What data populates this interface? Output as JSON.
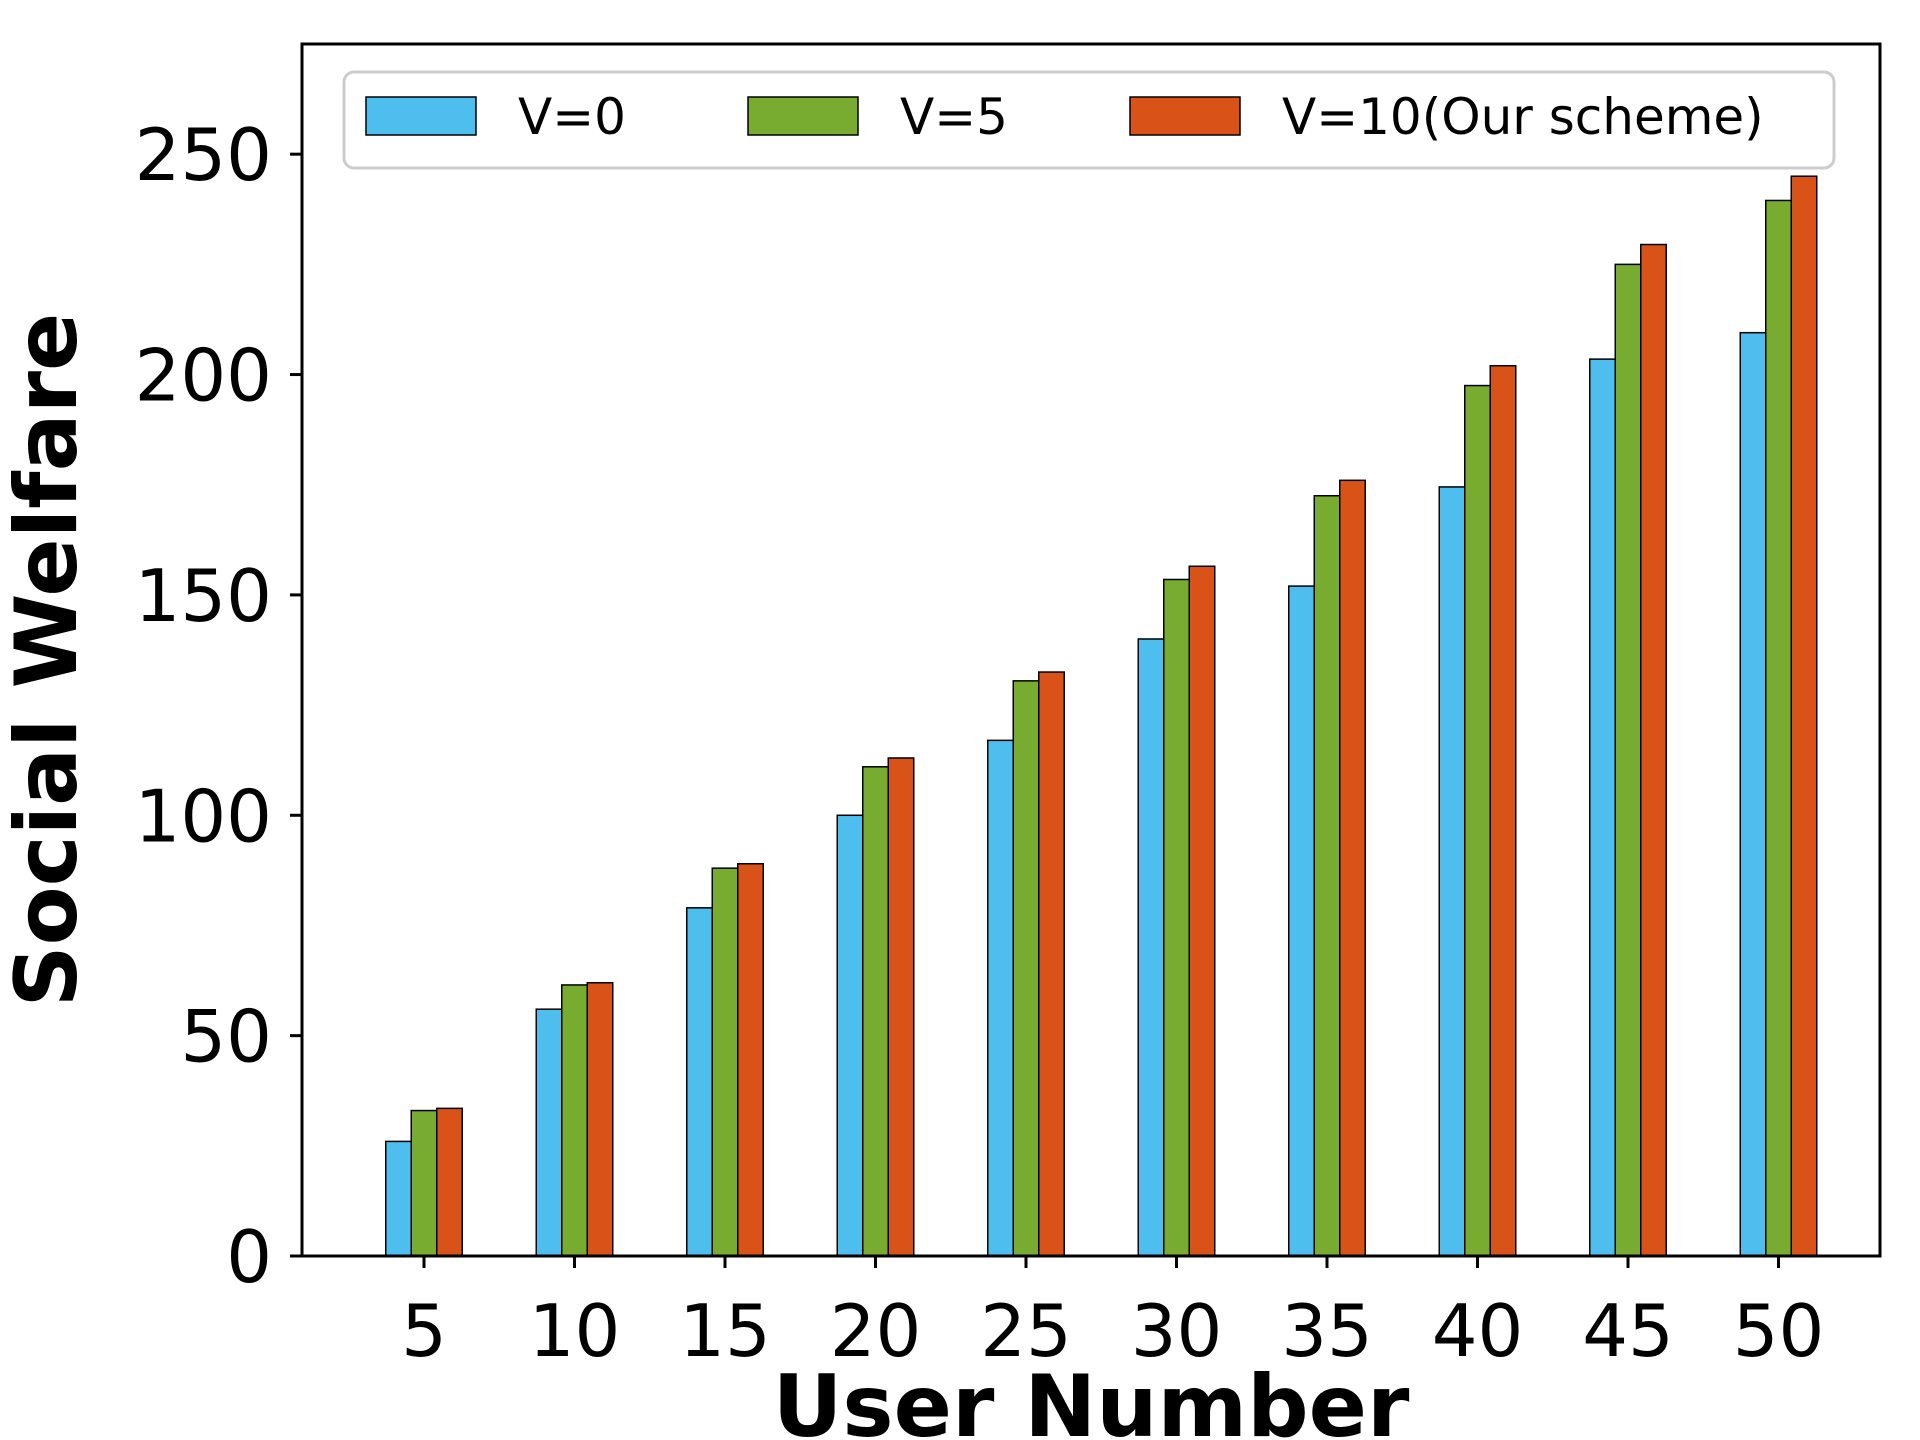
{
  "chart_data": {
    "type": "bar",
    "title": "",
    "xlabel": "User Number",
    "ylabel": "Social Welfare",
    "categories": [
      "5",
      "10",
      "15",
      "20",
      "25",
      "30",
      "35",
      "40",
      "45",
      "50"
    ],
    "ylim": [
      0,
      275
    ],
    "yticks": [
      "0",
      "50",
      "100",
      "150",
      "200",
      "250"
    ],
    "grid": false,
    "legend_position": "top",
    "series": [
      {
        "name": "V=0",
        "color": "#4DBEEE",
        "values": [
          26,
          56,
          79,
          100,
          117,
          140,
          152,
          174.5,
          203.5,
          209.5
        ]
      },
      {
        "name": "V=5",
        "color": "#77AC30",
        "values": [
          33,
          61.5,
          88,
          111,
          130.5,
          153.5,
          172.5,
          197.5,
          225,
          239.5
        ]
      },
      {
        "name": "V=10(Our scheme)",
        "color": "#D95319",
        "values": [
          33.5,
          62,
          89,
          113,
          132.5,
          156.5,
          176,
          202,
          229.5,
          245
        ]
      }
    ]
  }
}
